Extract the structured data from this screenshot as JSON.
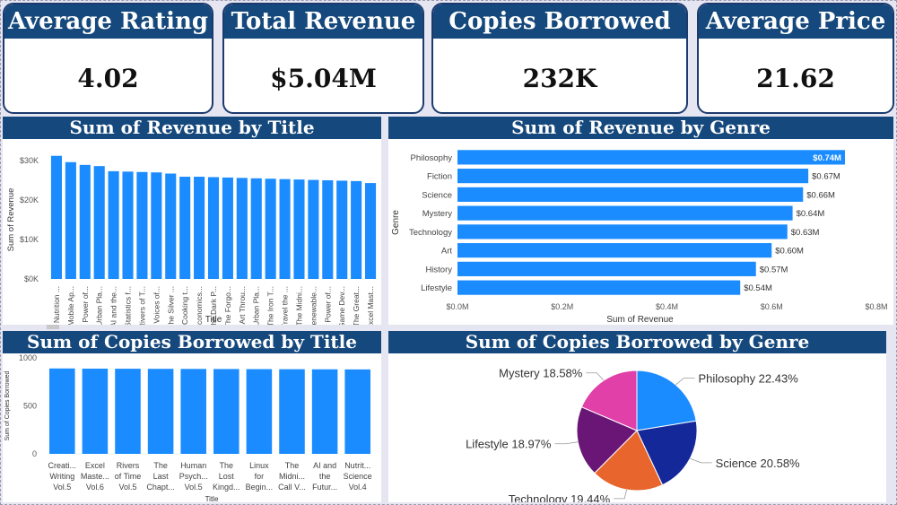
{
  "kpis": {
    "rating": {
      "title": "Average Rating",
      "value": "4.02"
    },
    "revenue": {
      "title": "Total Revenue",
      "value": "$5.04M"
    },
    "copies": {
      "title": "Copies Borrowed",
      "value": "232K"
    },
    "price": {
      "title": "Average Price",
      "value": "21.62"
    }
  },
  "colors": {
    "header": "#15487c",
    "bar": "#1a8cff",
    "pie": [
      "#1a8cff",
      "#14289a",
      "#e8662d",
      "#6a1677",
      "#e040a8"
    ]
  },
  "chart_data": [
    {
      "id": "revenue_by_title",
      "type": "bar",
      "title": "Sum of Revenue by Title",
      "xlabel": "Title",
      "ylabel": "Sum of Revenue",
      "ylim": [
        0,
        30000
      ],
      "yticks": [
        0,
        10000,
        20000,
        30000
      ],
      "ytick_labels": [
        "$0K",
        "$10K",
        "$20K",
        "$30K"
      ],
      "categories": [
        "Nutrition ...",
        "Mobile Ap...",
        "Power of...",
        "Urban Pla...",
        "AI and the...",
        "Statistics f...",
        "Rivers of T...",
        "Voices of...",
        "The Silver ...",
        "Cooking t...",
        "Economics...",
        "The Dark P...",
        "The Forgo...",
        "Art Throu...",
        "Urban Pla...",
        "The Iron T...",
        "Travel the ...",
        "The Midni...",
        "Renewable...",
        "Power of...",
        "Game Dev...",
        "The Great...",
        "Excel Mast..."
      ],
      "values": [
        31200,
        29600,
        28900,
        28600,
        27300,
        27200,
        27100,
        27000,
        26700,
        25900,
        25900,
        25800,
        25700,
        25600,
        25500,
        25400,
        25300,
        25200,
        25100,
        25000,
        24900,
        24800,
        24300
      ]
    },
    {
      "id": "revenue_by_genre",
      "type": "bar",
      "orientation": "horizontal",
      "title": "Sum of Revenue by Genre",
      "xlabel": "Sum of Revenue",
      "ylabel": "Genre",
      "xlim": [
        0,
        0.8
      ],
      "xticks": [
        0,
        0.2,
        0.4,
        0.6,
        0.8
      ],
      "xtick_labels": [
        "$0.0M",
        "$0.2M",
        "$0.4M",
        "$0.6M",
        "$0.8M"
      ],
      "categories": [
        "Philosophy",
        "Fiction",
        "Science",
        "Mystery",
        "Technology",
        "Art",
        "History",
        "Lifestyle"
      ],
      "values": [
        0.74,
        0.67,
        0.66,
        0.64,
        0.63,
        0.6,
        0.57,
        0.54
      ],
      "data_labels": [
        "$0.74M",
        "$0.67M",
        "$0.66M",
        "$0.64M",
        "$0.63M",
        "$0.60M",
        "$0.57M",
        "$0.54M"
      ]
    },
    {
      "id": "copies_by_title",
      "type": "bar",
      "title": "Sum of Copies Borrowed by Title",
      "xlabel": "Title",
      "ylabel": "Sum of Copies Borrowed",
      "ylim": [
        0,
        1000
      ],
      "yticks": [
        0,
        500,
        1000
      ],
      "ytick_labels": [
        "0",
        "500",
        "1000"
      ],
      "categories": [
        [
          "Creati...",
          "Writing",
          "Vol.5"
        ],
        [
          "Excel",
          "Maste...",
          "Vol.6"
        ],
        [
          "Rivers",
          "of Time",
          "Vol.5"
        ],
        [
          "The",
          "Last",
          "Chapt..."
        ],
        [
          "Human",
          "Psych...",
          "Vol.5"
        ],
        [
          "The",
          "Lost",
          "Kingd..."
        ],
        [
          "Linux",
          "for",
          "Begin..."
        ],
        [
          "The",
          "Midni...",
          "Call V..."
        ],
        [
          "AI and",
          "the",
          "Futur..."
        ],
        [
          "Nutrit...",
          "Science",
          "Vol.4"
        ]
      ],
      "values": [
        890,
        888,
        887,
        886,
        885,
        884,
        883,
        882,
        881,
        880
      ]
    },
    {
      "id": "copies_by_genre",
      "type": "pie",
      "title": "Sum of Copies Borrowed by Genre",
      "labels": [
        "Philosophy",
        "Science",
        "Technology",
        "Lifestyle",
        "Mystery"
      ],
      "values": [
        22.43,
        20.58,
        19.44,
        18.97,
        18.58
      ],
      "data_labels": [
        "Philosophy 22.43%",
        "Science 20.58%",
        "Technology 19.44%",
        "Lifestyle 18.97%",
        "Mystery 18.58%"
      ]
    }
  ]
}
